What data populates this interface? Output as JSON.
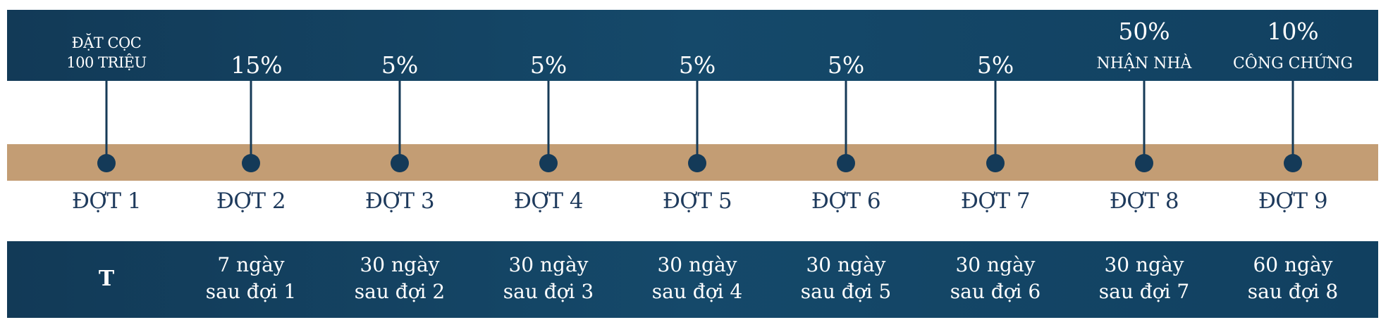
{
  "columns": [
    {
      "top": [
        "ĐẶT CỌC",
        "100 TRIỆU"
      ],
      "round": "ĐỢT 1",
      "time": [
        "T"
      ]
    },
    {
      "top": [
        "15%"
      ],
      "round": "ĐỢT 2",
      "time": [
        "7 ngày",
        "sau đợi 1"
      ]
    },
    {
      "top": [
        "5%"
      ],
      "round": "ĐỢT 3",
      "time": [
        "30 ngày",
        "sau đợi 2"
      ]
    },
    {
      "top": [
        "5%"
      ],
      "round": "ĐỢT 4",
      "time": [
        "30 ngày",
        "sau đợi 3"
      ]
    },
    {
      "top": [
        "5%"
      ],
      "round": "ĐỢT 5",
      "time": [
        "30 ngày",
        "sau đợi 4"
      ]
    },
    {
      "top": [
        "5%"
      ],
      "round": "ĐỢT 6",
      "time": [
        "30 ngày",
        "sau đợi 5"
      ]
    },
    {
      "top": [
        "5%"
      ],
      "round": "ĐỢT 7",
      "time": [
        "30 ngày",
        "sau đợi 6"
      ]
    },
    {
      "top": [
        "50%",
        "NHẬN NHÀ"
      ],
      "round": "ĐỢT 8",
      "time": [
        "30 ngày",
        "sau đợi 7"
      ]
    },
    {
      "top": [
        "10%",
        "CÔNG CHỨNG"
      ],
      "round": "ĐỢT 9",
      "time": [
        "60 ngày",
        "sau đợi 8"
      ]
    }
  ],
  "colors": {
    "band": "#134262",
    "bar": "#c39d74",
    "dot": "#143a58",
    "round_text": "#1e3a5c"
  }
}
